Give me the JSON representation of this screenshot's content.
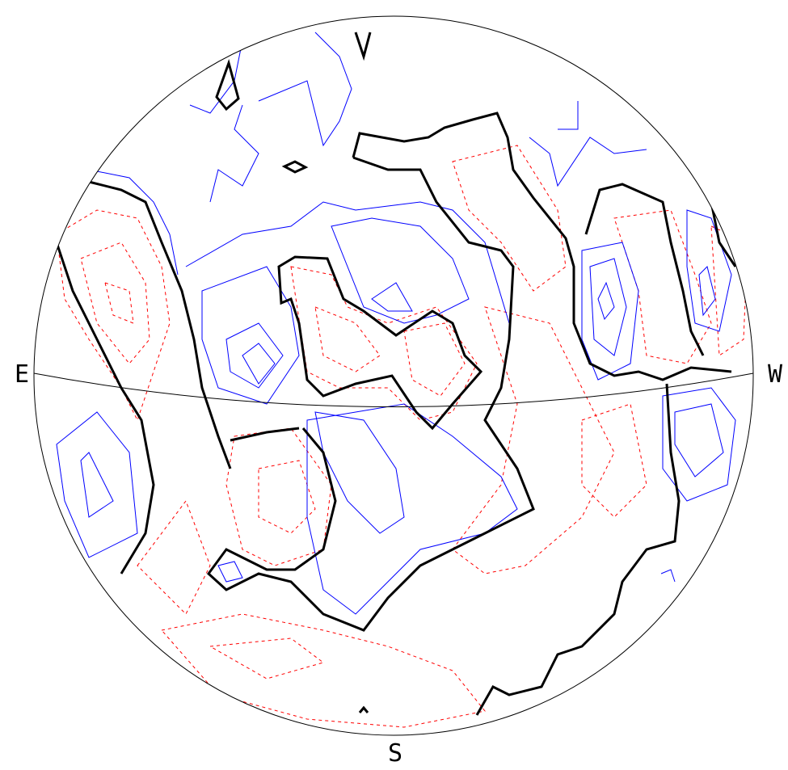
{
  "labels": {
    "east": "E",
    "west": "W",
    "south": "S"
  }
}
